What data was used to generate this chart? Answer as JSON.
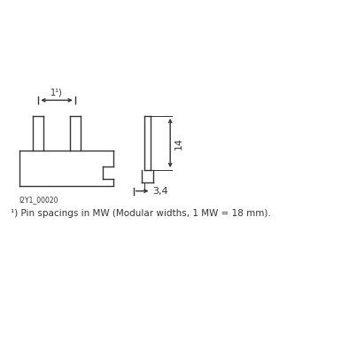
{
  "bg_color": "#ffffff",
  "line_color": "#333333",
  "text_color": "#333333",
  "footnote": "¹⧩ Pin spacings in MW (Modular widths, 1 MW = 18 mm).",
  "footnote_plain": "¹) Pin spacings in MW (Modular widths, 1 MW = 18 mm).",
  "label_code": "I2Y1_00020",
  "dim_label_1": "1¹⧩",
  "dim_label_1_plain": "1¹)",
  "dim_label_14": "14",
  "dim_label_34": "3,4",
  "figsize": [
    3.85,
    3.85
  ],
  "dpi": 100
}
